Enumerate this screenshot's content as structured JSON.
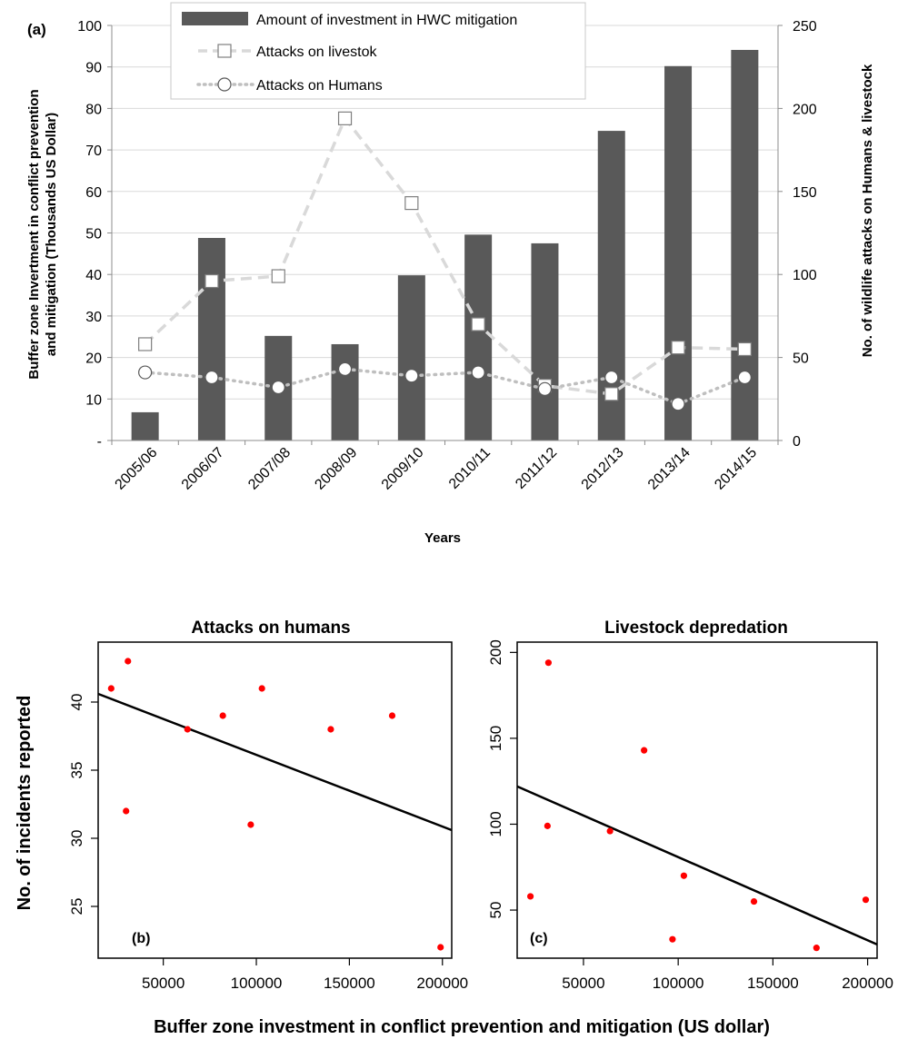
{
  "chart_data": [
    {
      "type": "bar+line",
      "panel_label": "(a)",
      "categories": [
        "2005/06",
        "2006/07",
        "2007/08",
        "2008/09",
        "2009/10",
        "2010/11",
        "2011/12",
        "2012/13",
        "2013/14",
        "2014/15"
      ],
      "series": [
        {
          "name": "Amount of investment in HWC mitigation",
          "type": "bar",
          "axis": "left",
          "values": [
            6.8,
            48.8,
            25.2,
            23.2,
            39.8,
            49.6,
            47.5,
            74.6,
            90.2,
            94.1
          ]
        },
        {
          "name": "Attacks on livestok",
          "type": "line",
          "style": "dashed",
          "marker": "square",
          "axis": "right",
          "values": [
            58,
            96,
            99,
            194,
            143,
            70,
            33,
            28,
            56,
            55
          ]
        },
        {
          "name": "Attacks on Humans",
          "type": "line",
          "style": "dotted",
          "marker": "circle",
          "axis": "right",
          "values": [
            41,
            38,
            32,
            43,
            39,
            41,
            31,
            38,
            22,
            38
          ]
        }
      ],
      "xlabel": "Years",
      "ylabel_left_lines": [
        "Buffer zone Invertment in conflict prevention",
        "and mitigation (Thousands US Dollar)"
      ],
      "ylabel_right": "No. of wildlife attacks on Humans  &  livestock",
      "ylim_left": [
        0,
        100
      ],
      "ylim_right": [
        0,
        250
      ],
      "yticks_left": [
        "-",
        "10",
        "20",
        "30",
        "40",
        "50",
        "60",
        "70",
        "80",
        "90",
        "100"
      ],
      "yticks_right": [
        "0",
        "50",
        "100",
        "150",
        "200",
        "250"
      ],
      "grid": "horizontal",
      "legend": "top-center",
      "colors": {
        "bar": "#595959",
        "livestock": "#d9d9d9",
        "humans": "#bfbfbf",
        "grid": "#d9d9d9"
      }
    },
    {
      "type": "scatter",
      "panel_label": "(b)",
      "title": "Attacks on humans",
      "x": [
        22000,
        30000,
        31000,
        63000,
        82000,
        97000,
        103000,
        140000,
        173000,
        199000
      ],
      "y": [
        41,
        32,
        43,
        38,
        39,
        31,
        41,
        38,
        39,
        22
      ],
      "fit_line": {
        "x": [
          15000,
          205000
        ],
        "y": [
          40.6,
          30.6
        ]
      },
      "xlim": [
        15000,
        205000
      ],
      "ylim": [
        21.2,
        44.4
      ],
      "xticks": [
        "50000",
        "100000",
        "150000",
        "200000"
      ],
      "yticks": [
        "25",
        "30",
        "35",
        "40"
      ],
      "grid": "off",
      "colors": {
        "point": "#ff0000",
        "line": "#000000"
      }
    },
    {
      "type": "scatter",
      "panel_label": "(c)",
      "title": "Livestock depredation",
      "x": [
        22000,
        31000,
        31500,
        64000,
        82000,
        97000,
        103000,
        140000,
        173000,
        199000
      ],
      "y": [
        58,
        99,
        194,
        96,
        143,
        33,
        70,
        55,
        28,
        56
      ],
      "fit_line": {
        "x": [
          15000,
          205000
        ],
        "y": [
          122,
          30
        ]
      },
      "xlim": [
        15000,
        205000
      ],
      "ylim": [
        22,
        206
      ],
      "xticks": [
        "50000",
        "100000",
        "150000",
        "200000"
      ],
      "yticks": [
        "50",
        "100",
        "150",
        "200"
      ],
      "grid": "off",
      "colors": {
        "point": "#ff0000",
        "line": "#000000"
      }
    }
  ],
  "shared_ylabel": "No. of incidents reported",
  "shared_xlabel": "Buffer zone investment in conflict prevention and mitigation (US dollar)"
}
